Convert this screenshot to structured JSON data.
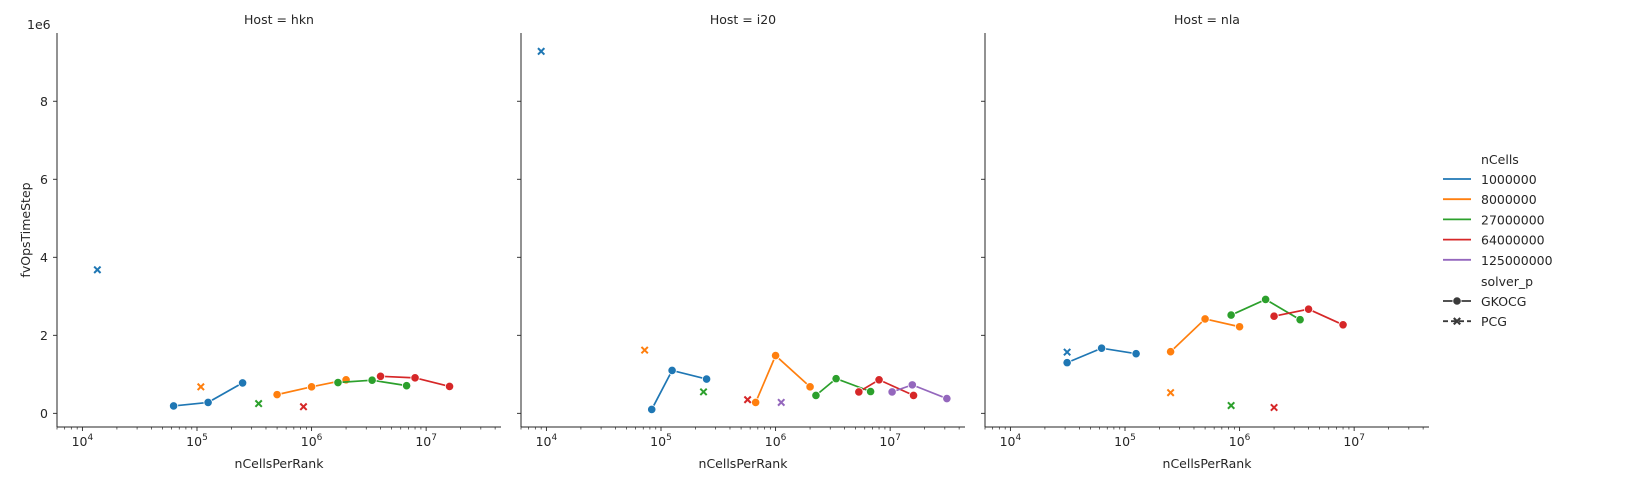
{
  "figure": {
    "y_multiplier": "1e6"
  },
  "chart_data": [
    {
      "type": "line",
      "title": "Host = hkn",
      "xlabel": "nCellsPerRank",
      "ylabel": "fvOpsTimeStep",
      "xscale": "log",
      "xlim": [
        6000,
        45000000
      ],
      "ylim": [
        -0.35,
        9.75
      ],
      "y_multiplier": "1e6",
      "series": [
        {
          "nCells": "1000000",
          "solver_p": "GKOCG",
          "x": [
            62500,
            125000,
            250000
          ],
          "y": [
            0.19,
            0.28,
            0.78
          ]
        },
        {
          "nCells": "1000000",
          "solver_p": "PCG",
          "x": [
            13500
          ],
          "y": [
            3.68
          ]
        },
        {
          "nCells": "8000000",
          "solver_p": "GKOCG",
          "x": [
            500000,
            1000000,
            2000000
          ],
          "y": [
            0.48,
            0.68,
            0.86
          ]
        },
        {
          "nCells": "8000000",
          "solver_p": "PCG",
          "x": [
            108000
          ],
          "y": [
            0.68
          ]
        },
        {
          "nCells": "27000000",
          "solver_p": "GKOCG",
          "x": [
            1700000,
            3375000,
            6750000
          ],
          "y": [
            0.79,
            0.85,
            0.71
          ]
        },
        {
          "nCells": "27000000",
          "solver_p": "PCG",
          "x": [
            345000
          ],
          "y": [
            0.25
          ]
        },
        {
          "nCells": "64000000",
          "solver_p": "GKOCG",
          "x": [
            4000000,
            8000000,
            16000000
          ],
          "y": [
            0.95,
            0.91,
            0.69
          ]
        },
        {
          "nCells": "64000000",
          "solver_p": "PCG",
          "x": [
            850000
          ],
          "y": [
            0.17
          ]
        }
      ]
    },
    {
      "type": "line",
      "title": "Host = i20",
      "xlabel": "nCellsPerRank",
      "ylabel": "",
      "xscale": "log",
      "xlim": [
        6000,
        45000000
      ],
      "ylim": [
        -0.35,
        9.75
      ],
      "y_multiplier": "1e6",
      "series": [
        {
          "nCells": "1000000",
          "solver_p": "GKOCG",
          "x": [
            83000,
            125000,
            250000
          ],
          "y": [
            0.1,
            1.1,
            0.88
          ]
        },
        {
          "nCells": "1000000",
          "solver_p": "PCG",
          "x": [
            9000
          ],
          "y": [
            9.28
          ]
        },
        {
          "nCells": "8000000",
          "solver_p": "GKOCG",
          "x": [
            670000,
            1000000,
            2000000
          ],
          "y": [
            0.28,
            1.48,
            0.68
          ]
        },
        {
          "nCells": "8000000",
          "solver_p": "PCG",
          "x": [
            72000
          ],
          "y": [
            1.62
          ]
        },
        {
          "nCells": "27000000",
          "solver_p": "GKOCG",
          "x": [
            2250000,
            3375000,
            6750000
          ],
          "y": [
            0.46,
            0.89,
            0.56
          ]
        },
        {
          "nCells": "27000000",
          "solver_p": "PCG",
          "x": [
            235000
          ],
          "y": [
            0.55
          ]
        },
        {
          "nCells": "64000000",
          "solver_p": "GKOCG",
          "x": [
            5330000,
            8000000,
            16000000
          ],
          "y": [
            0.55,
            0.86,
            0.46
          ]
        },
        {
          "nCells": "64000000",
          "solver_p": "PCG",
          "x": [
            570000
          ],
          "y": [
            0.35
          ]
        },
        {
          "nCells": "125000000",
          "solver_p": "GKOCG",
          "x": [
            10400000,
            15600000,
            31250000
          ],
          "y": [
            0.55,
            0.73,
            0.38
          ]
        },
        {
          "nCells": "125000000",
          "solver_p": "PCG",
          "x": [
            1120000
          ],
          "y": [
            0.28
          ]
        }
      ]
    },
    {
      "type": "line",
      "title": "Host = nla",
      "xlabel": "nCellsPerRank",
      "ylabel": "",
      "xscale": "log",
      "xlim": [
        6000,
        45000000
      ],
      "ylim": [
        -0.35,
        9.75
      ],
      "y_multiplier": "1e6",
      "series": [
        {
          "nCells": "1000000",
          "solver_p": "GKOCG",
          "x": [
            31250,
            62500,
            125000
          ],
          "y": [
            1.3,
            1.67,
            1.53
          ]
        },
        {
          "nCells": "1000000",
          "solver_p": "PCG",
          "x": [
            31250
          ],
          "y": [
            1.57
          ]
        },
        {
          "nCells": "8000000",
          "solver_p": "GKOCG",
          "x": [
            250000,
            500000,
            1000000
          ],
          "y": [
            1.58,
            2.42,
            2.22
          ]
        },
        {
          "nCells": "8000000",
          "solver_p": "PCG",
          "x": [
            250000
          ],
          "y": [
            0.53
          ]
        },
        {
          "nCells": "27000000",
          "solver_p": "GKOCG",
          "x": [
            843750,
            1687500,
            3375000
          ],
          "y": [
            2.52,
            2.92,
            2.4
          ]
        },
        {
          "nCells": "27000000",
          "solver_p": "PCG",
          "x": [
            843750
          ],
          "y": [
            0.2
          ]
        },
        {
          "nCells": "64000000",
          "solver_p": "GKOCG",
          "x": [
            2000000,
            4000000,
            8000000
          ],
          "y": [
            2.49,
            2.67,
            2.27
          ]
        },
        {
          "nCells": "64000000",
          "solver_p": "PCG",
          "x": [
            2000000
          ],
          "y": [
            0.15
          ]
        }
      ]
    }
  ],
  "legend": {
    "placement": "right",
    "hue_title": "nCells",
    "hue_entries": [
      {
        "label": "1000000",
        "color": "#1f77b4"
      },
      {
        "label": "8000000",
        "color": "#ff7f0e"
      },
      {
        "label": "27000000",
        "color": "#2ca02c"
      },
      {
        "label": "64000000",
        "color": "#d62728"
      },
      {
        "label": "125000000",
        "color": "#9467bd"
      }
    ],
    "style_title": "solver_p",
    "style_entries": [
      {
        "label": "GKOCG",
        "marker": "circle"
      },
      {
        "label": "PCG",
        "marker": "x"
      }
    ]
  },
  "y_ticks": [
    "0",
    "2",
    "4",
    "6",
    "8"
  ],
  "y_tick_values": [
    0,
    2,
    4,
    6,
    8
  ],
  "x_ticks": [
    {
      "base": "10",
      "exp": "4",
      "value": 10000
    },
    {
      "base": "10",
      "exp": "5",
      "value": 100000
    },
    {
      "base": "10",
      "exp": "6",
      "value": 1000000
    },
    {
      "base": "10",
      "exp": "7",
      "value": 10000000
    }
  ]
}
